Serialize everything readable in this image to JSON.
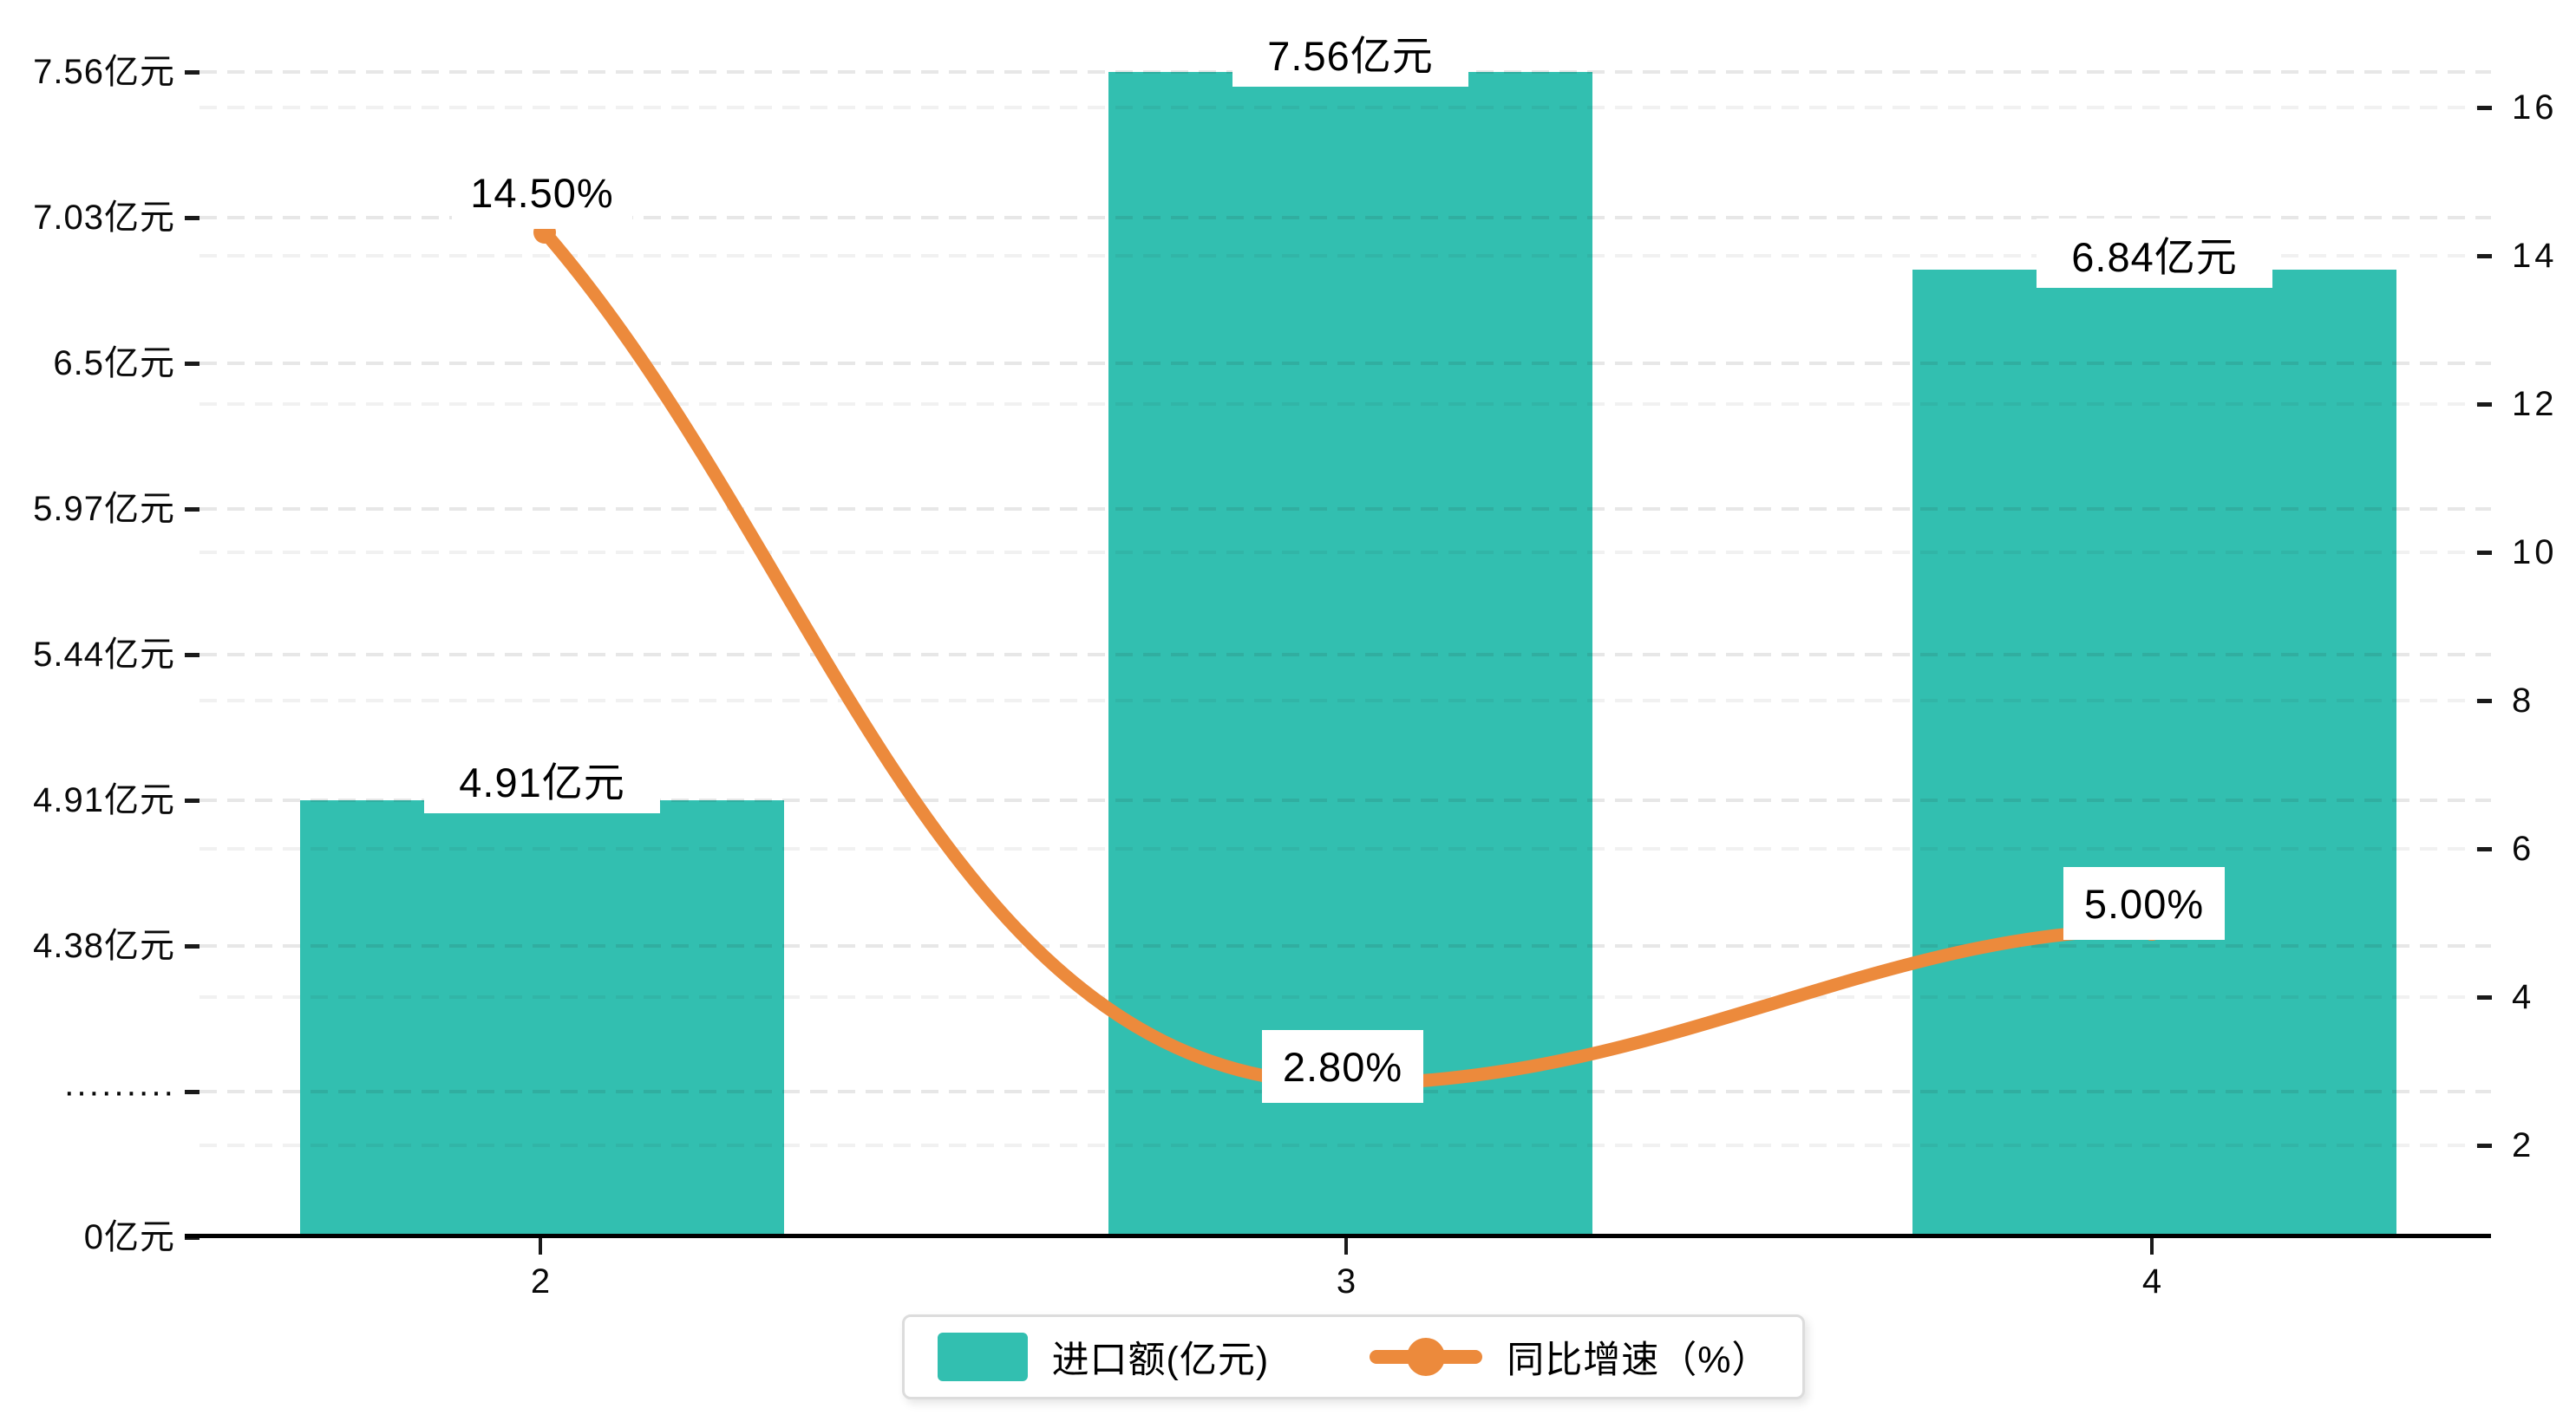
{
  "chart_data": {
    "type": "bar",
    "subtype": "bar+line dual axis",
    "categories": [
      "2",
      "3",
      "4"
    ],
    "series": [
      {
        "name": "进口额(亿元)",
        "type": "bar",
        "values": [
          4.91,
          7.56,
          6.84
        ],
        "value_labels": [
          "4.91亿元",
          "7.56亿元",
          "6.84亿元"
        ],
        "color": "#32bfb0",
        "axis": "left"
      },
      {
        "name": "同比增速（%）",
        "type": "line",
        "values": [
          14.5,
          2.8,
          5.0
        ],
        "value_labels": [
          "14.50%",
          "2.80%",
          "5.00%"
        ],
        "color": "#ec8a3c",
        "axis": "right",
        "smooth": true
      }
    ],
    "left_axis": {
      "tick_labels": [
        "7.56亿元",
        "7.03亿元",
        "6.5亿元",
        "5.97亿元",
        "5.44亿元",
        "4.91亿元",
        "4.38亿元",
        "·········",
        "0亿元"
      ],
      "note": "broken axis between 0 and 4.38, dotted tick marks the break"
    },
    "right_axis": {
      "tick_labels": [
        "16",
        "14",
        "12",
        "10",
        "8",
        "6",
        "4",
        "2"
      ],
      "range": [
        0,
        16
      ]
    },
    "grid": "dashed horizontal gridlines for both axes",
    "legend_position": "bottom-center"
  },
  "legend": {
    "bar_label": "进口额(亿元)",
    "line_label": "同比增速（%）"
  },
  "colors": {
    "bar": "#32bfb0",
    "line": "#ec8a3c",
    "axis": "#000000",
    "legend_border": "#dcdcdc",
    "label_text": "#000000",
    "label_bg": "#ffffff"
  }
}
